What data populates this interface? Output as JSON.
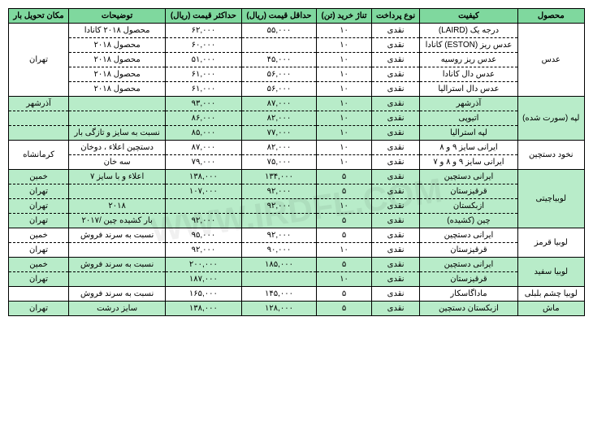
{
  "watermark": "WWW.IRDFL.COM",
  "headers": {
    "product": "محصول",
    "quality": "کیفیت",
    "payment": "نوع پرداخت",
    "tonnage": "تناژ خرید (تن)",
    "min_price": "حداقل قیمت (ریال)",
    "max_price": "حداکثر قیمت (ریال)",
    "notes": "توضیحات",
    "delivery": "مکان تحویل بار"
  },
  "colors": {
    "header_bg": "#7fd89e",
    "row_alt1": "#b8ecc9",
    "row_alt2": "#ffffff",
    "border": "#000000"
  },
  "groups": [
    {
      "product": "عدس",
      "bg": "#ffffff",
      "delivery": "تهران",
      "rows": [
        {
          "quality": "درجه یک (LAIRD)",
          "payment": "نقدی",
          "tonnage": "۱۰",
          "min": "۵۵,۰۰۰",
          "max": "۶۲,۰۰۰",
          "notes": "محصول ۲۰۱۸ کانادا"
        },
        {
          "quality": "عدس ریز (ESTON) کانادا",
          "payment": "نقدی",
          "tonnage": "۱۰",
          "min": "",
          "max": "۶۰,۰۰۰",
          "notes": "محصول ۲۰۱۸"
        },
        {
          "quality": "عدس ریز روسیه",
          "payment": "نقدی",
          "tonnage": "۱۰",
          "min": "۴۵,۰۰۰",
          "max": "۵۱,۰۰۰",
          "notes": "محصول ۲۰۱۸"
        },
        {
          "quality": "عدس دال کانادا",
          "payment": "نقدی",
          "tonnage": "۱۰",
          "min": "۵۶,۰۰۰",
          "max": "۶۱,۰۰۰",
          "notes": "محصول ۲۰۱۸"
        },
        {
          "quality": "عدس دال استرالیا",
          "payment": "نقدی",
          "tonnage": "۱۰",
          "min": "۵۶,۰۰۰",
          "max": "۶۱,۰۰۰",
          "notes": "محصول ۲۰۱۸"
        }
      ]
    },
    {
      "product": "لپه (سورت شده)",
      "bg": "#b8ecc9",
      "rows": [
        {
          "quality": "آذرشهر",
          "payment": "نقدی",
          "tonnage": "۱۰",
          "min": "۸۷,۰۰۰",
          "max": "۹۳,۰۰۰",
          "notes": "",
          "delivery": "آذرشهر"
        },
        {
          "quality": "اتیوپی",
          "payment": "نقدی",
          "tonnage": "۱۰",
          "min": "۸۲,۰۰۰",
          "max": "۸۶,۰۰۰",
          "notes": "",
          "delivery": ""
        },
        {
          "quality": "لپه استرالیا",
          "payment": "نقدی",
          "tonnage": "۱۰",
          "min": "۷۷,۰۰۰",
          "max": "۸۵,۰۰۰",
          "notes": "نسبت به سایز و تازگی بار",
          "delivery": ""
        }
      ]
    },
    {
      "product": "نخود دستچین",
      "bg": "#ffffff",
      "delivery": "کرمانشاه",
      "rows": [
        {
          "quality": "ایرانی سایز ۹ و ۸",
          "payment": "نقدی",
          "tonnage": "۱۰",
          "min": "۸۲,۰۰۰",
          "max": "۸۷,۰۰۰",
          "notes": "دستچین اعلاء ، دوخان"
        },
        {
          "quality": "ایرانی سایز ۹ و ۸ و ۷",
          "payment": "نقدی",
          "tonnage": "۱۰",
          "min": "۷۵,۰۰۰",
          "max": "۷۹,۰۰۰",
          "notes": "سه خان"
        }
      ]
    },
    {
      "product": "لوبیاچیتی",
      "bg": "#b8ecc9",
      "rows": [
        {
          "quality": "ایرانی دستچین",
          "payment": "نقدی",
          "tonnage": "۵",
          "min": "۱۳۴,۰۰۰",
          "max": "۱۳۸,۰۰۰",
          "notes": "اعلاء و با سایز ۷",
          "delivery": "خمین"
        },
        {
          "quality": "قرقیزستان",
          "payment": "نقدی",
          "tonnage": "۵",
          "min": "۹۲,۰۰۰",
          "max": "۱۰۷,۰۰۰",
          "notes": "",
          "delivery": "تهران"
        },
        {
          "quality": "ازبکستان",
          "payment": "نقدی",
          "tonnage": "۱۰",
          "min": "۹۲,۰۰۰",
          "max": "",
          "notes": "۲۰۱۸",
          "delivery": "تهران"
        },
        {
          "quality": "چین (کشیده)",
          "payment": "نقدی",
          "tonnage": "۵",
          "min": "",
          "max": "۹۲,۰۰۰",
          "notes": "بار کشیده چین /۲۰۱۷",
          "delivery": "تهران"
        }
      ]
    },
    {
      "product": "لوبیا قرمز",
      "bg": "#ffffff",
      "rows": [
        {
          "quality": "ایرانی دستچین",
          "payment": "نقدی",
          "tonnage": "۵",
          "min": "۹۲,۰۰۰",
          "max": "۹۵,۰۰۰",
          "notes": "نسبت به سرند فروش",
          "delivery": "خمین"
        },
        {
          "quality": "قرقیزستان",
          "payment": "نقدی",
          "tonnage": "۱۰",
          "min": "۹۰,۰۰۰",
          "max": "۹۲,۰۰۰",
          "notes": "",
          "delivery": "تهران"
        }
      ]
    },
    {
      "product": "لوبیا سفید",
      "bg": "#b8ecc9",
      "rows": [
        {
          "quality": "ایرانی دستچین",
          "payment": "نقدی",
          "tonnage": "۵",
          "min": "۱۸۵,۰۰۰",
          "max": "۲۰۰,۰۰۰",
          "notes": "نسبت به سرند فروش",
          "delivery": "خمین"
        },
        {
          "quality": "قرقیزستان",
          "payment": "نقدی",
          "tonnage": "۱۰",
          "min": "",
          "max": "۱۸۷,۰۰۰",
          "notes": "",
          "delivery": "تهران"
        }
      ]
    },
    {
      "product": "لوبیا چشم بلبلی",
      "bg": "#ffffff",
      "rows": [
        {
          "quality": "ماداگاسکار",
          "payment": "نقدی",
          "tonnage": "۵",
          "min": "۱۴۵,۰۰۰",
          "max": "۱۶۵,۰۰۰",
          "notes": "نسبت به سرند فروش",
          "delivery": ""
        }
      ]
    },
    {
      "product": "ماش",
      "bg": "#b8ecc9",
      "rows": [
        {
          "quality": "ازبکستان دستچین",
          "payment": "نقدی",
          "tonnage": "۵",
          "min": "۱۲۸,۰۰۰",
          "max": "۱۳۸,۰۰۰",
          "notes": "سایز درشت",
          "delivery": "تهران"
        }
      ]
    }
  ]
}
